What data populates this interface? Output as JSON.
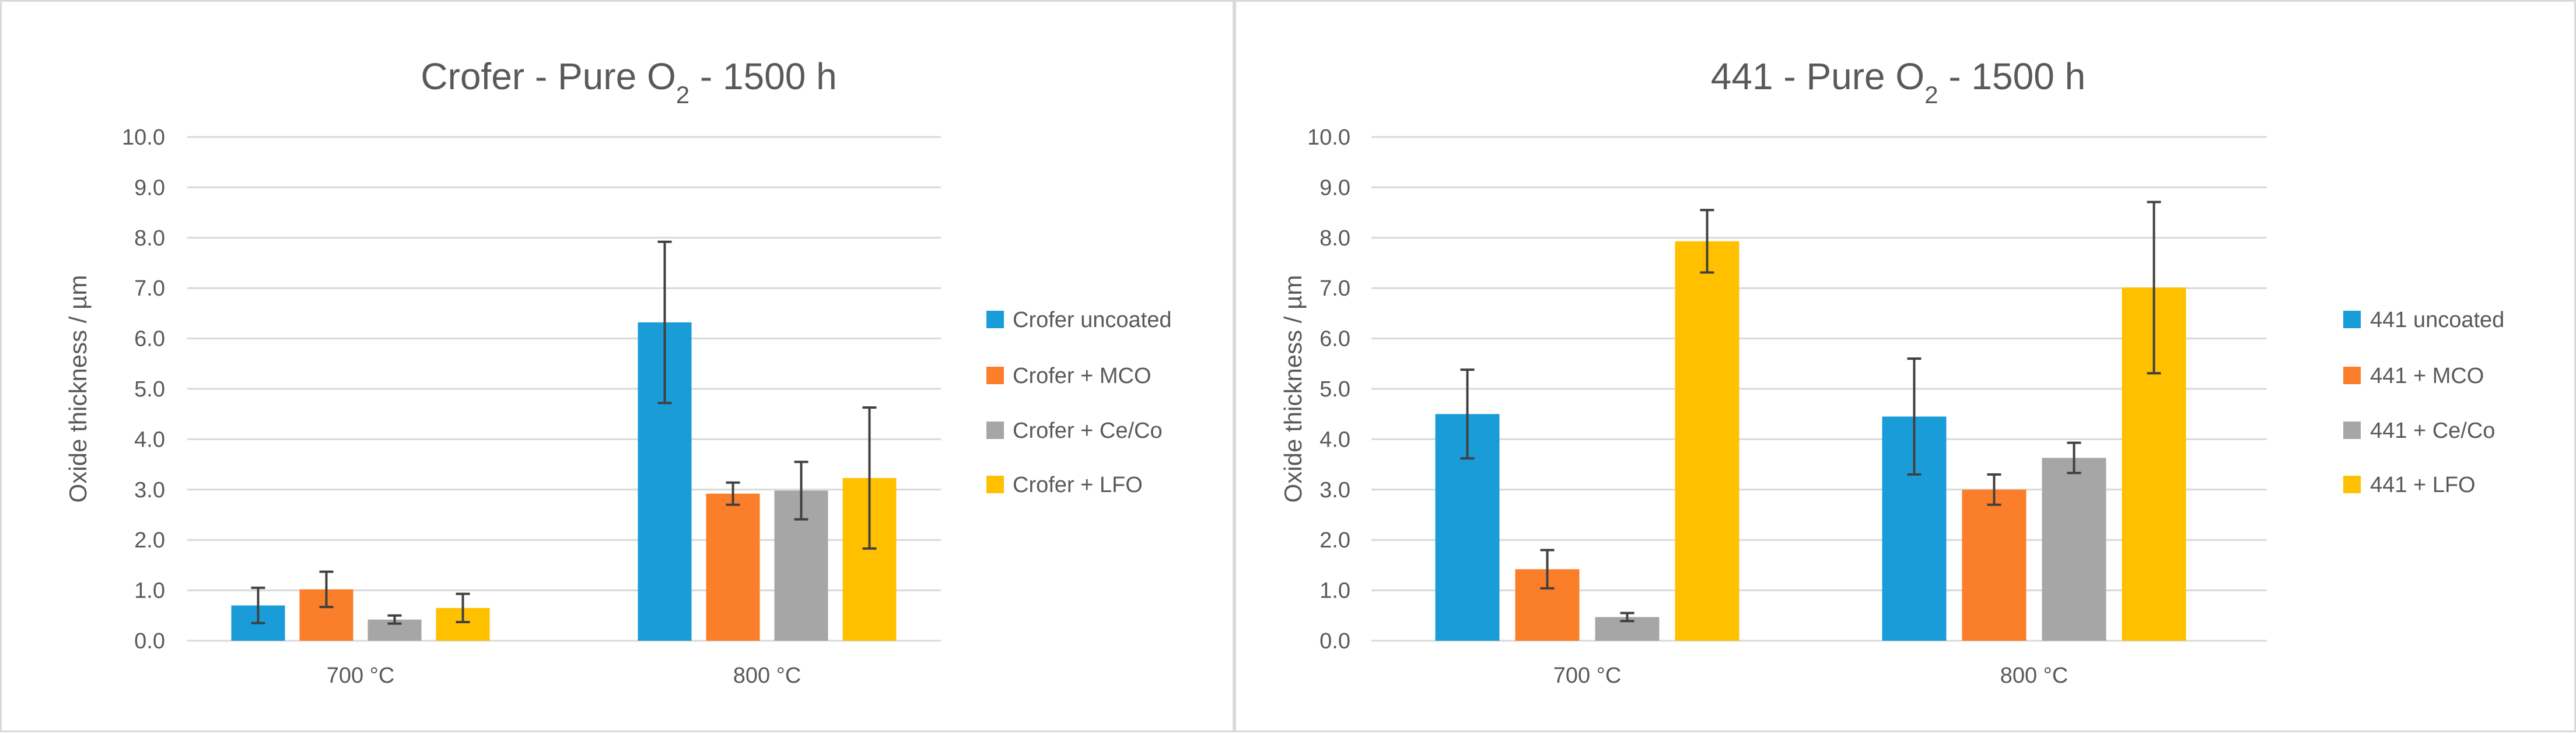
{
  "chart_data": [
    {
      "type": "bar",
      "title": "Crofer - Pure O",
      "title_sub": "2",
      "title_suffix": " - 1500 h",
      "ylabel": "Oxide thickness / µm",
      "xlabel": "",
      "ylim": [
        0,
        10
      ],
      "yticks": [
        "0.0",
        "1.0",
        "2.0",
        "3.0",
        "4.0",
        "5.0",
        "6.0",
        "7.0",
        "8.0",
        "9.0",
        "10.0"
      ],
      "categories": [
        "700 °C",
        "800 °C"
      ],
      "legend_position": "right",
      "series": [
        {
          "name": "Crofer uncoated",
          "color": "#1a9cd8",
          "values": [
            0.7,
            6.32
          ],
          "errors": [
            0.35,
            1.6
          ]
        },
        {
          "name": "Crofer + MCO",
          "color": "#fb7e2b",
          "values": [
            1.02,
            2.92
          ],
          "errors": [
            0.35,
            0.22
          ]
        },
        {
          "name": "Crofer + Ce/Co",
          "color": "#a6a6a6",
          "values": [
            0.42,
            2.98
          ],
          "errors": [
            0.08,
            0.57
          ]
        },
        {
          "name": "Crofer + LFO",
          "color": "#ffc000",
          "values": [
            0.65,
            3.23
          ],
          "errors": [
            0.28,
            1.4
          ]
        }
      ]
    },
    {
      "type": "bar",
      "title": "441 - Pure O",
      "title_sub": "2",
      "title_suffix": " - 1500 h",
      "ylabel": "Oxide thickness / µm",
      "xlabel": "",
      "ylim": [
        0,
        10
      ],
      "yticks": [
        "0.0",
        "1.0",
        "2.0",
        "3.0",
        "4.0",
        "5.0",
        "6.0",
        "7.0",
        "8.0",
        "9.0",
        "10.0"
      ],
      "categories": [
        "700 °C",
        "800 °C"
      ],
      "legend_position": "right",
      "series": [
        {
          "name": "441 uncoated",
          "color": "#1a9cd8",
          "values": [
            4.5,
            4.45
          ],
          "errors": [
            0.88,
            1.15
          ]
        },
        {
          "name": "441 + MCO",
          "color": "#fb7e2b",
          "values": [
            1.42,
            3.0
          ],
          "errors": [
            0.38,
            0.3
          ]
        },
        {
          "name": "441 + Ce/Co",
          "color": "#a6a6a6",
          "values": [
            0.47,
            3.63
          ],
          "errors": [
            0.08,
            0.3
          ]
        },
        {
          "name": "441 + LFO",
          "color": "#ffc000",
          "values": [
            7.93,
            7.01
          ],
          "errors": [
            0.62,
            1.7
          ]
        }
      ]
    }
  ]
}
